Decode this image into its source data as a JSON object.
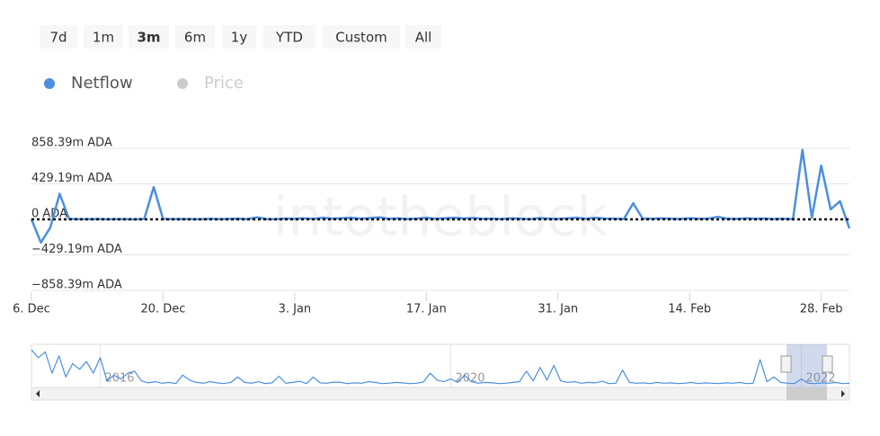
{
  "range_selector": {
    "buttons": [
      "7d",
      "1m",
      "3m",
      "6m",
      "1y",
      "YTD",
      "Custom",
      "All"
    ],
    "selected": 2
  },
  "legend_hidden": {
    "name": "Price",
    "color": "#cccccc"
  },
  "chart_data": [
    {
      "type": "line",
      "watermark": "intotheblock",
      "categories": [
        "6. Dec",
        null,
        null,
        null,
        null,
        null,
        null,
        null,
        null,
        null,
        null,
        null,
        null,
        null,
        "20. Dec",
        null,
        null,
        null,
        null,
        null,
        null,
        null,
        null,
        null,
        null,
        null,
        null,
        null,
        "3. Jan",
        null,
        null,
        null,
        null,
        null,
        null,
        null,
        null,
        null,
        null,
        null,
        null,
        null,
        "17. Jan",
        null,
        null,
        null,
        null,
        null,
        null,
        null,
        null,
        null,
        null,
        null,
        null,
        null,
        "31. Jan",
        null,
        null,
        null,
        null,
        null,
        null,
        null,
        null,
        null,
        null,
        null,
        null,
        null,
        "14. Feb",
        null,
        null,
        null,
        null,
        null,
        null,
        null,
        null,
        null,
        null,
        null,
        null,
        null,
        "28. Feb",
        null,
        null,
        null
      ],
      "series": [
        {
          "name": "Netflow",
          "color": "#4a8fe0",
          "values": [
            0,
            -280,
            -100,
            310,
            5,
            3,
            2,
            4,
            1,
            3,
            2,
            0,
            5,
            390,
            5,
            2,
            4,
            3,
            1,
            6,
            2,
            5,
            8,
            3,
            25,
            4,
            2,
            10,
            6,
            12,
            5,
            18,
            9,
            14,
            20,
            8,
            15,
            25,
            6,
            12,
            4,
            10,
            18,
            7,
            14,
            20,
            10,
            16,
            6,
            9,
            4,
            12,
            8,
            3,
            15,
            9,
            5,
            12,
            18,
            6,
            20,
            10,
            8,
            4,
            195,
            10,
            6,
            12,
            8,
            4,
            14,
            6,
            10,
            30,
            8,
            5,
            12,
            6,
            10,
            4,
            8,
            2,
            840,
            20,
            650,
            120,
            220,
            -110
          ]
        }
      ],
      "ylim": [
        -858.39,
        858.39
      ],
      "yticks": [
        {
          "value": -858.39,
          "label": "−858.39m ADA"
        },
        {
          "value": -429.19,
          "label": "−429.19m ADA"
        },
        {
          "value": 0,
          "label": "0 ADA"
        },
        {
          "value": 429.19,
          "label": "429.19m ADA"
        },
        {
          "value": 858.39,
          "label": "858.39m ADA"
        }
      ],
      "grid": true,
      "zero_line": true
    },
    {
      "type": "line",
      "categories": [
        null,
        null,
        null,
        null,
        null,
        null,
        null,
        null,
        null,
        null,
        "2016",
        null,
        null,
        null,
        null,
        null,
        null,
        null,
        null,
        null,
        null,
        null,
        null,
        null,
        null,
        null,
        null,
        null,
        null,
        null,
        null,
        null,
        null,
        null,
        null,
        null,
        null,
        null,
        null,
        null,
        null,
        null,
        null,
        null,
        null,
        null,
        null,
        null,
        null,
        null,
        null,
        null,
        null,
        null,
        null,
        null,
        null,
        null,
        null,
        null,
        null,
        "2020",
        null,
        null,
        null,
        null,
        null,
        null,
        null,
        null,
        null,
        null,
        null,
        null,
        null,
        null,
        null,
        null,
        null,
        null,
        null,
        null,
        null,
        null,
        null,
        null,
        null,
        null,
        null,
        null,
        null,
        null,
        null,
        null,
        null,
        null,
        null,
        null,
        null,
        null,
        null,
        null,
        null,
        null,
        null,
        null,
        null,
        null,
        null,
        null,
        null,
        null,
        "2022",
        null,
        null,
        null,
        null,
        null,
        null,
        null
      ],
      "series": [
        {
          "name": "Netflow",
          "color": "#4a8fe0",
          "values": [
            900,
            700,
            850,
            300,
            750,
            200,
            550,
            400,
            600,
            300,
            700,
            100,
            250,
            150,
            300,
            350,
            100,
            50,
            80,
            40,
            60,
            30,
            250,
            120,
            60,
            40,
            80,
            50,
            30,
            60,
            200,
            60,
            40,
            80,
            30,
            50,
            220,
            40,
            60,
            90,
            30,
            200,
            50,
            40,
            70,
            60,
            30,
            50,
            40,
            80,
            60,
            30,
            40,
            60,
            50,
            30,
            40,
            70,
            300,
            120,
            80,
            150,
            60,
            250,
            80,
            40,
            60,
            50,
            30,
            40,
            60,
            80,
            350,
            100,
            450,
            120,
            500,
            100,
            60,
            80,
            40,
            60,
            50,
            90,
            30,
            40,
            380,
            60,
            40,
            50,
            30,
            60,
            40,
            50,
            30,
            40,
            60,
            30,
            50,
            40,
            30,
            50,
            40,
            60,
            30,
            40,
            650,
            80,
            200,
            60,
            40,
            30,
            150,
            40,
            30,
            50,
            40,
            60,
            30,
            40
          ]
        }
      ],
      "ylim": [
        0,
        1000
      ]
    }
  ]
}
